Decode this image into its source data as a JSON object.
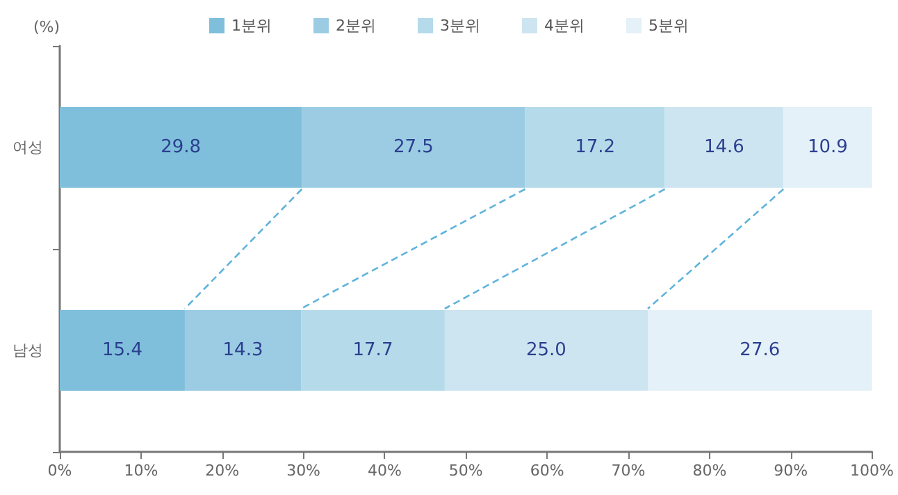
{
  "chart_data": {
    "type": "bar",
    "orientation": "horizontal",
    "stacked": true,
    "ylabel": "(%)",
    "categories": [
      "여성",
      "남성"
    ],
    "series": [
      {
        "name": "1분위",
        "color": "#7fbfdb",
        "values": [
          29.8,
          15.4
        ]
      },
      {
        "name": "2분위",
        "color": "#9bcce3",
        "values": [
          27.5,
          14.3
        ]
      },
      {
        "name": "3분위",
        "color": "#b5dbeb",
        "values": [
          17.2,
          17.7
        ]
      },
      {
        "name": "4분위",
        "color": "#cde5f1",
        "values": [
          14.6,
          25.0
        ],
        "value_labels": [
          "14.6",
          "25.0"
        ]
      },
      {
        "name": "5분위",
        "color": "#e4f1f8",
        "values": [
          10.9,
          27.6
        ]
      }
    ],
    "xlim": [
      0,
      100
    ],
    "xticks": [
      {
        "value": 0,
        "label": "0%"
      },
      {
        "value": 10,
        "label": "10%"
      },
      {
        "value": 20,
        "label": "20%"
      },
      {
        "value": 30,
        "label": "30%"
      },
      {
        "value": 40,
        "label": "40%"
      },
      {
        "value": 50,
        "label": "50%"
      },
      {
        "value": 60,
        "label": "60%"
      },
      {
        "value": 70,
        "label": "70%"
      },
      {
        "value": 80,
        "label": "80%"
      },
      {
        "value": 90,
        "label": "90%"
      },
      {
        "value": 100,
        "label": "100%"
      }
    ],
    "grid": false,
    "legend": "top",
    "data_labels": true
  }
}
